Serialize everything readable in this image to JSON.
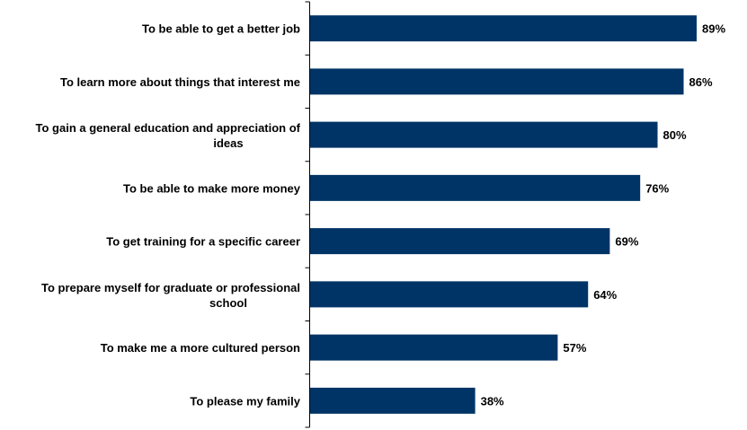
{
  "chart_data": {
    "type": "bar",
    "orientation": "horizontal",
    "categories": [
      "To be able to get a better job",
      "To learn more about things that interest me",
      "To gain a general education and appreciation of ideas",
      "To be able to make more money",
      "To get training for a specific career",
      "To prepare myself for graduate or professional school",
      "To make me a more cultured person",
      "To please my family"
    ],
    "values": [
      89,
      86,
      80,
      76,
      69,
      64,
      57,
      38
    ],
    "value_labels": [
      "89%",
      "86%",
      "80%",
      "76%",
      "69%",
      "64%",
      "57%",
      "38%"
    ],
    "unit": "%",
    "xlim": [
      0,
      92
    ],
    "grid": false,
    "legend": "none",
    "bar_color": "#003466"
  }
}
